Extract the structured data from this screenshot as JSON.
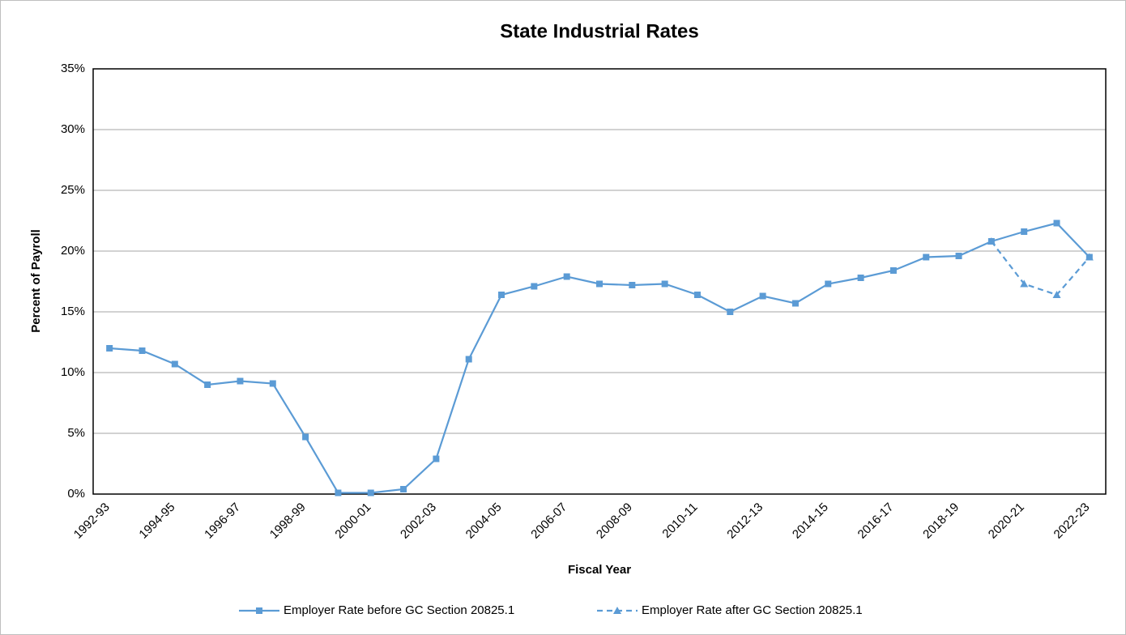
{
  "chart_data": {
    "type": "line",
    "title": "State Industrial Rates",
    "x_label": "Fiscal Year",
    "y_label": "Percent of Payroll",
    "categories": [
      "1992-93",
      null,
      "1994-95",
      null,
      "1996-97",
      null,
      "1998-99",
      null,
      "2000-01",
      null,
      "2002-03",
      null,
      "2004-05",
      null,
      "2006-07",
      null,
      "2008-09",
      null,
      "2010-11",
      null,
      "2012-13",
      null,
      "2014-15",
      null,
      "2016-17",
      null,
      "2018-19",
      null,
      "2020-21",
      null,
      "2022-23"
    ],
    "series": [
      {
        "name": "Employer Rate before GC Section 20825.1",
        "color": "#5b9bd5",
        "marker": "square",
        "dash": false,
        "values": [
          12.0,
          11.8,
          10.7,
          9.0,
          9.3,
          9.1,
          4.7,
          0.1,
          0.1,
          0.4,
          2.9,
          11.1,
          16.4,
          17.1,
          17.9,
          17.3,
          17.2,
          17.3,
          16.4,
          15.0,
          16.3,
          15.7,
          17.3,
          17.8,
          18.4,
          19.5,
          19.6,
          20.8,
          21.6,
          22.3,
          19.5
        ]
      },
      {
        "name": "Employer Rate after GC Section 20825.1",
        "color": "#5b9bd5",
        "marker": "triangle",
        "dash": true,
        "values": [
          null,
          null,
          null,
          null,
          null,
          null,
          null,
          null,
          null,
          null,
          null,
          null,
          null,
          null,
          null,
          null,
          null,
          null,
          null,
          null,
          null,
          null,
          null,
          null,
          null,
          null,
          null,
          20.8,
          17.3,
          16.4,
          19.5
        ]
      }
    ],
    "ylim": [
      0,
      35
    ],
    "yticks": [
      {
        "value": 0,
        "label": "0%"
      },
      {
        "value": 5,
        "label": "5%"
      },
      {
        "value": 10,
        "label": "10%"
      },
      {
        "value": 15,
        "label": "15%"
      },
      {
        "value": 20,
        "label": "20%"
      },
      {
        "value": 25,
        "label": "25%"
      },
      {
        "value": 30,
        "label": "30%"
      },
      {
        "value": 35,
        "label": "35%"
      }
    ],
    "grid": true,
    "legend": "bottom"
  }
}
